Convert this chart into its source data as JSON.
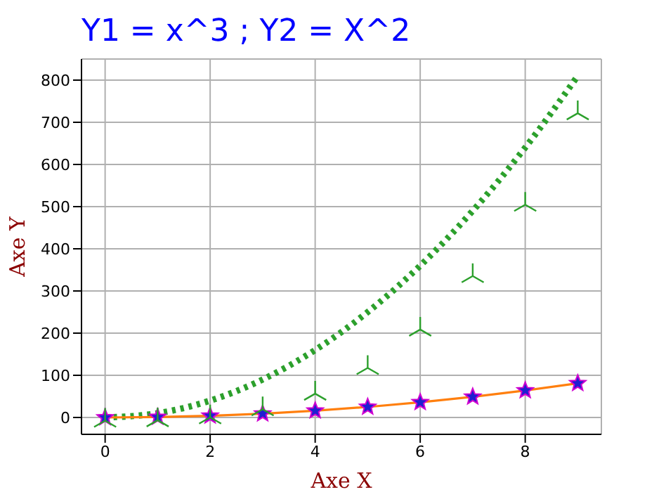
{
  "chart_data": {
    "type": "line",
    "title": "Y1 = x^3 ; Y2 = X^2",
    "xlabel": "Axe X",
    "ylabel": "Axe Y",
    "x": [
      0,
      1,
      2,
      3,
      4,
      5,
      6,
      7,
      8,
      9
    ],
    "series": [
      {
        "color": "#2ca02c",
        "line_style": "dotted",
        "marker": "none",
        "values": [
          0,
          10,
          40,
          90,
          160,
          250,
          360,
          490,
          640,
          810
        ]
      },
      {
        "color": "#ff7f0e",
        "line_style": "solid",
        "marker": "star",
        "values": [
          0,
          1,
          4,
          9,
          16,
          25,
          36,
          49,
          64,
          81
        ]
      },
      {
        "type": "scatter",
        "color": "#2ca02c",
        "marker": "cross",
        "values": [
          0,
          1,
          8,
          27,
          64,
          125,
          216,
          343,
          512,
          729
        ]
      }
    ],
    "xlim": [
      -0.45,
      9.45
    ],
    "xticks": [
      0,
      2,
      4,
      6,
      8
    ],
    "ylim": [
      -40,
      850
    ],
    "yticks": [
      0,
      100,
      200,
      300,
      400,
      500,
      600,
      700,
      800
    ],
    "grid": true,
    "legend": false
  }
}
